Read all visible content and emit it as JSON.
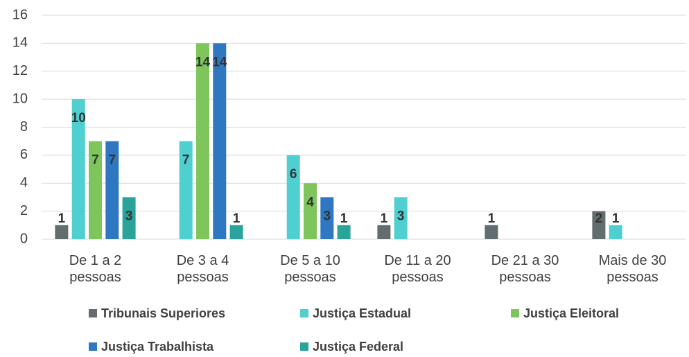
{
  "chart_data": {
    "type": "bar",
    "categories": [
      "De 1 a 2 pessoas",
      "De 3 a 4 pessoas",
      "De 5 a 10 pessoas",
      "De 11 a 20 pessoas",
      "De 21 a 30 pessoas",
      "Mais de 30 pessoas"
    ],
    "series": [
      {
        "name": "Tribunais Superiores",
        "color": "#636c6e",
        "values": [
          1,
          null,
          null,
          1,
          1,
          2
        ]
      },
      {
        "name": "Justiça Estadual",
        "color": "#4fcfcf",
        "values": [
          10,
          7,
          6,
          3,
          null,
          1
        ]
      },
      {
        "name": "Justiça Eleitoral",
        "color": "#7ec65b",
        "values": [
          7,
          14,
          4,
          null,
          null,
          null
        ]
      },
      {
        "name": "Justiça Trabalhista",
        "color": "#2f77c0",
        "values": [
          7,
          14,
          3,
          null,
          null,
          null
        ]
      },
      {
        "name": "Justiça Federal",
        "color": "#2aa39a",
        "values": [
          3,
          1,
          1,
          null,
          null,
          null
        ]
      }
    ],
    "ylim": [
      0,
      16
    ],
    "yticks": [
      0,
      2,
      4,
      6,
      8,
      10,
      12,
      14,
      16
    ],
    "grid": true,
    "legend": "bottom"
  }
}
